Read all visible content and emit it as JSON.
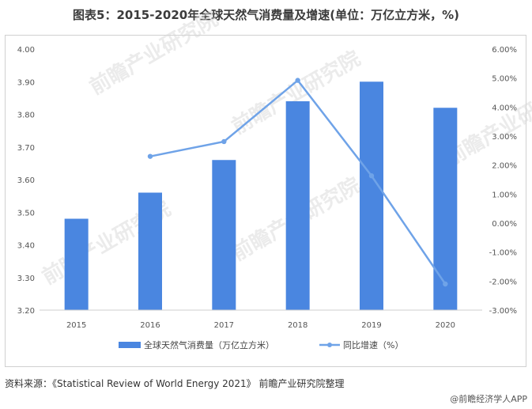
{
  "title": "图表5：2015-2020年全球天然气消费量及增速(单位：万亿立方米，%)",
  "footer": {
    "source": "资料来源：《Statistical Review of World Energy 2021》 前瞻产业研究院整理",
    "brand": "@前瞻经济学人APP"
  },
  "watermark": "前瞻产业研究院",
  "colors": {
    "bar": "#4a86e0",
    "line": "#6fa3e8"
  },
  "chart_data": {
    "type": "bar",
    "categories": [
      "2015",
      "2016",
      "2017",
      "2018",
      "2019",
      "2020"
    ],
    "series": [
      {
        "name": "全球天然气消费量（万亿立方米）",
        "type": "bar",
        "axis": "left",
        "values": [
          3.48,
          3.56,
          3.66,
          3.84,
          3.9,
          3.82
        ]
      },
      {
        "name": "同比增速（%）",
        "type": "line",
        "axis": "right",
        "values": [
          null,
          2.3,
          2.81,
          4.92,
          1.63,
          -2.1
        ]
      }
    ],
    "ylim_left": [
      3.2,
      4.0
    ],
    "yticks_left": [
      "4.00",
      "3.90",
      "3.80",
      "3.70",
      "3.60",
      "3.50",
      "3.40",
      "3.30",
      "3.20"
    ],
    "ylim_right": [
      -3.0,
      6.0
    ],
    "yticks_right": [
      "6.00%",
      "5.00%",
      "4.00%",
      "3.00%",
      "2.00%",
      "1.00%",
      "0.00%",
      "-1.00%",
      "-2.00%",
      "-3.00%"
    ],
    "legend_position": "bottom"
  }
}
